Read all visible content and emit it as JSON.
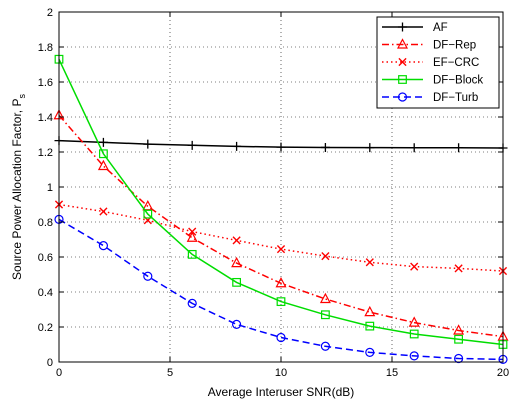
{
  "chart_data": {
    "type": "line",
    "xlabel": "Average Interuser SNR(dB)",
    "ylabel": "Source Power Allocation Factor, P",
    "ylabel_sub": "s",
    "xlim": [
      0,
      20
    ],
    "ylim": [
      0,
      2
    ],
    "x_ticks": [
      0,
      5,
      10,
      15,
      20
    ],
    "y_ticks": [
      0,
      0.2,
      0.4,
      0.6,
      0.8,
      1,
      1.2,
      1.4,
      1.6,
      1.8,
      2
    ],
    "x_tick_labels": [
      "0",
      "5",
      "10",
      "15",
      "20"
    ],
    "y_tick_labels": [
      "0",
      "0.2",
      "0.4",
      "0.6",
      "0.8",
      "1",
      "1.2",
      "1.4",
      "1.6",
      "1.8",
      "2"
    ],
    "grid": true,
    "legend_position": "top-right",
    "x": [
      0,
      2,
      4,
      6,
      8,
      10,
      12,
      14,
      16,
      18,
      20
    ],
    "series": [
      {
        "name": "AF",
        "color": "#000000",
        "dash": "solid",
        "marker": "plus",
        "values": [
          1.265,
          1.255,
          1.245,
          1.238,
          1.232,
          1.228,
          1.226,
          1.225,
          1.224,
          1.224,
          1.223
        ]
      },
      {
        "name": "DF−Rep",
        "color": "#ff0000",
        "dash": "dashdot",
        "marker": "triangle",
        "values": [
          1.41,
          1.12,
          0.89,
          0.71,
          0.565,
          0.45,
          0.36,
          0.285,
          0.225,
          0.18,
          0.145
        ]
      },
      {
        "name": "EF−CRC",
        "color": "#ff0000",
        "dash": "dotted",
        "marker": "x",
        "values": [
          0.9,
          0.86,
          0.81,
          0.745,
          0.695,
          0.645,
          0.605,
          0.57,
          0.545,
          0.535,
          0.52
        ]
      },
      {
        "name": "DF−Block",
        "color": "#00dd00",
        "dash": "solid",
        "marker": "square",
        "values": [
          1.73,
          1.19,
          0.845,
          0.615,
          0.455,
          0.345,
          0.27,
          0.205,
          0.16,
          0.13,
          0.1
        ]
      },
      {
        "name": "DF−Turb",
        "color": "#0000ff",
        "dash": "dashed",
        "marker": "circle",
        "values": [
          0.815,
          0.665,
          0.49,
          0.335,
          0.215,
          0.14,
          0.09,
          0.055,
          0.035,
          0.02,
          0.015
        ]
      }
    ]
  }
}
